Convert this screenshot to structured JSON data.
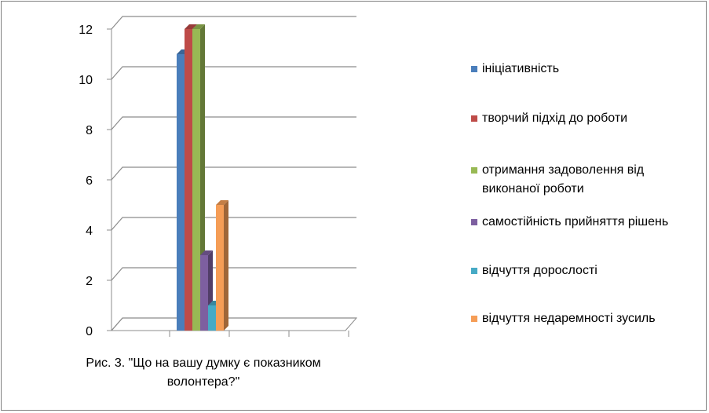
{
  "chart_data": {
    "type": "bar",
    "subtype": "3d-clustered-column",
    "categories": [
      ""
    ],
    "series": [
      {
        "name": "ініціативність",
        "values": [
          11
        ],
        "color": "#4a7ebb"
      },
      {
        "name": "творчий підхід до роботи",
        "values": [
          12
        ],
        "color": "#be4b48"
      },
      {
        "name": "отримання задоволення від виконаної роботи",
        "values": [
          12
        ],
        "color": "#98b954"
      },
      {
        "name": "самостійність прийняття рішень",
        "values": [
          3
        ],
        "color": "#7d5fa0"
      },
      {
        "name": "відчуття дорослості",
        "values": [
          1
        ],
        "color": "#46aac5"
      },
      {
        "name": "відчуття недаремності зусиль",
        "values": [
          5
        ],
        "color": "#f59d56"
      }
    ],
    "ylim": [
      0,
      12
    ],
    "yticks": [
      "0",
      "2",
      "4",
      "6",
      "8",
      "10",
      "12"
    ],
    "grid": true,
    "legend": "right",
    "caption_lines": [
      "Рис. 3. \"Що на вашу думку є показником",
      "волонтера?\""
    ]
  }
}
